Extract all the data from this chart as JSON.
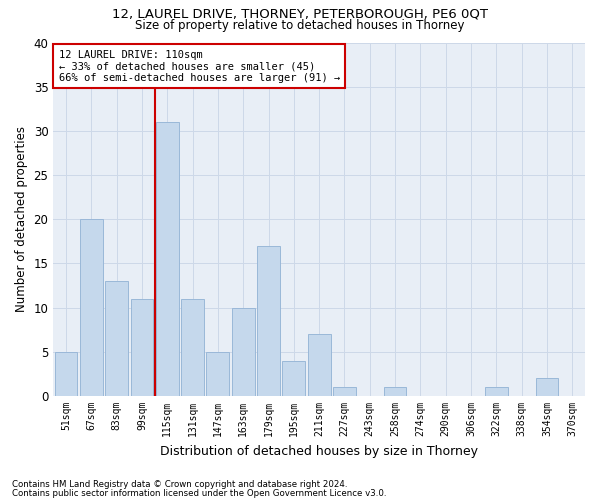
{
  "title1": "12, LAUREL DRIVE, THORNEY, PETERBOROUGH, PE6 0QT",
  "title2": "Size of property relative to detached houses in Thorney",
  "xlabel": "Distribution of detached houses by size in Thorney",
  "ylabel": "Number of detached properties",
  "categories": [
    "51sqm",
    "67sqm",
    "83sqm",
    "99sqm",
    "115sqm",
    "131sqm",
    "147sqm",
    "163sqm",
    "179sqm",
    "195sqm",
    "211sqm",
    "227sqm",
    "243sqm",
    "258sqm",
    "274sqm",
    "290sqm",
    "306sqm",
    "322sqm",
    "338sqm",
    "354sqm",
    "370sqm"
  ],
  "values": [
    5,
    20,
    13,
    11,
    31,
    11,
    5,
    10,
    17,
    4,
    7,
    1,
    0,
    1,
    0,
    0,
    0,
    1,
    0,
    2,
    0
  ],
  "bar_color": "#c5d8ec",
  "bar_edge_color": "#9ab8d8",
  "vline_x": 3.5,
  "vline_color": "#cc0000",
  "annotation_line1": "12 LAUREL DRIVE: 110sqm",
  "annotation_line2": "← 33% of detached houses are smaller (45)",
  "annotation_line3": "66% of semi-detached houses are larger (91) →",
  "annotation_box_color": "#ffffff",
  "annotation_box_edge_color": "#cc0000",
  "ylim": [
    0,
    40
  ],
  "yticks": [
    0,
    5,
    10,
    15,
    20,
    25,
    30,
    35,
    40
  ],
  "footnote1": "Contains HM Land Registry data © Crown copyright and database right 2024.",
  "footnote2": "Contains public sector information licensed under the Open Government Licence v3.0.",
  "grid_color": "#cdd8e8",
  "bg_color": "#e8eef6",
  "fig_width": 6.0,
  "fig_height": 5.0,
  "dpi": 100
}
